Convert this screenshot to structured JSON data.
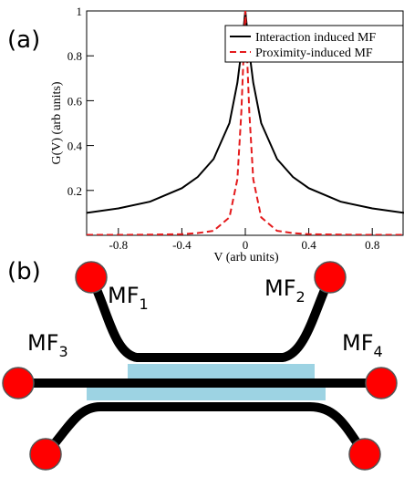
{
  "chart_data": {
    "type": "line",
    "panel_label": "(a)",
    "xlabel": "V (arb units)",
    "ylabel": "G(V) (arb units)",
    "x": [
      -1,
      -0.8,
      -0.6,
      -0.4,
      -0.3,
      -0.2,
      -0.1,
      -0.05,
      -0.025,
      0,
      0.025,
      0.05,
      0.1,
      0.2,
      0.3,
      0.4,
      0.6,
      0.8,
      1
    ],
    "series": [
      {
        "name": "Interaction induced MF",
        "color": "#000000",
        "style": "solid",
        "values": [
          0.1,
          0.12,
          0.15,
          0.21,
          0.26,
          0.34,
          0.5,
          0.68,
          0.82,
          1,
          0.82,
          0.68,
          0.5,
          0.34,
          0.26,
          0.21,
          0.15,
          0.12,
          0.1
        ]
      },
      {
        "name": "Proximity-induced MF",
        "color": "#e41a1c",
        "style": "dashed",
        "values": [
          0.002,
          0.002,
          0.003,
          0.005,
          0.01,
          0.02,
          0.08,
          0.25,
          0.55,
          1,
          0.55,
          0.25,
          0.08,
          0.02,
          0.01,
          0.005,
          0.003,
          0.002,
          0.002
        ]
      }
    ],
    "xlim": [
      -1,
      1
    ],
    "ylim": [
      0,
      1
    ],
    "xticks": [
      -0.8,
      -0.4,
      0,
      0.4,
      0.8
    ],
    "yticks": [
      0.2,
      0.4,
      0.6,
      0.8,
      1
    ],
    "legend": "upper right"
  },
  "diagram": {
    "panel_label": "(b)",
    "labels": [
      {
        "text": "MF",
        "sub": "1"
      },
      {
        "text": "MF",
        "sub": "2"
      },
      {
        "text": "MF",
        "sub": "3"
      },
      {
        "text": "MF",
        "sub": "4"
      }
    ]
  }
}
